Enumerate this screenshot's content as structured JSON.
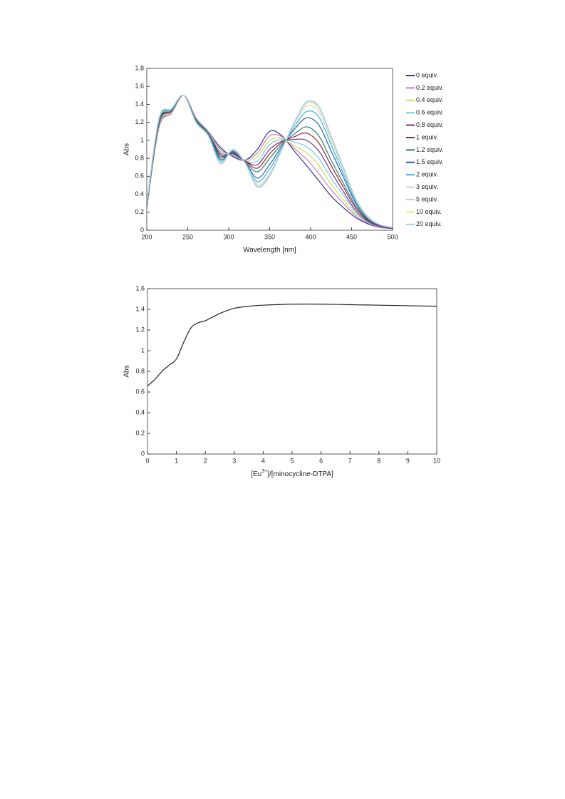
{
  "chart_data": [
    {
      "type": "line",
      "x_label": "Wavelength [nm]",
      "y_label": "Abs",
      "x": [
        200,
        215,
        230,
        245,
        260,
        275,
        290,
        305,
        320,
        335,
        350,
        365,
        380,
        395,
        410,
        425,
        440,
        455,
        470,
        485,
        500
      ],
      "xlim": [
        200,
        500
      ],
      "xticks": [
        200,
        250,
        300,
        350,
        400,
        450,
        500
      ],
      "ylim": [
        0,
        1.8
      ],
      "yticks": [
        0,
        0.2,
        0.4,
        0.6,
        0.8,
        1,
        1.2,
        1.4,
        1.6,
        1.8
      ],
      "legend": "right",
      "series": [
        {
          "name": "0 equiv.",
          "color": "#2e3a87",
          "values": [
            0.25,
            1.15,
            1.3,
            1.5,
            1.25,
            1.1,
            0.92,
            0.82,
            0.78,
            0.9,
            1.1,
            1.05,
            0.88,
            0.72,
            0.55,
            0.38,
            0.25,
            0.14,
            0.07,
            0.03,
            0.02
          ]
        },
        {
          "name": "0.2 equiv.",
          "color": "#c77dbf",
          "values": [
            0.26,
            1.16,
            1.3,
            1.5,
            1.25,
            1.1,
            0.9,
            0.83,
            0.78,
            0.86,
            1.05,
            1.04,
            0.91,
            0.79,
            0.63,
            0.45,
            0.3,
            0.16,
            0.08,
            0.03,
            0.02
          ]
        },
        {
          "name": "0.4 equiv.",
          "color": "#d3dd52",
          "values": [
            0.26,
            1.17,
            1.31,
            1.5,
            1.24,
            1.09,
            0.88,
            0.84,
            0.77,
            0.82,
            1,
            1.02,
            0.94,
            0.86,
            0.72,
            0.51,
            0.34,
            0.18,
            0.09,
            0.04,
            0.02
          ]
        },
        {
          "name": "0.6 equiv.",
          "color": "#6fd0e8",
          "values": [
            0.27,
            1.18,
            1.32,
            1.5,
            1.24,
            1.09,
            0.87,
            0.84,
            0.77,
            0.77,
            0.95,
            1.01,
            0.98,
            0.93,
            0.8,
            0.58,
            0.39,
            0.2,
            0.09,
            0.04,
            0.02
          ]
        },
        {
          "name": "0.8 equiv.",
          "color": "#7a2c8f",
          "values": [
            0.27,
            1.19,
            1.32,
            1.5,
            1.23,
            1.08,
            0.85,
            0.85,
            0.77,
            0.73,
            0.9,
            0.99,
            1.01,
            1,
            0.88,
            0.65,
            0.43,
            0.22,
            0.1,
            0.04,
            0.02
          ]
        },
        {
          "name": "1 equiv.",
          "color": "#8b2a2a",
          "values": [
            0.28,
            1.2,
            1.33,
            1.5,
            1.23,
            1.08,
            0.83,
            0.86,
            0.77,
            0.69,
            0.85,
            0.98,
            1.04,
            1.08,
            0.97,
            0.72,
            0.48,
            0.25,
            0.11,
            0.05,
            0.03
          ]
        },
        {
          "name": "1.2 equiv.",
          "color": "#2f7f6f",
          "values": [
            0.28,
            1.21,
            1.33,
            1.5,
            1.22,
            1.07,
            0.81,
            0.87,
            0.76,
            0.65,
            0.8,
            0.96,
            1.07,
            1.15,
            1.05,
            0.78,
            0.52,
            0.27,
            0.12,
            0.05,
            0.03
          ]
        },
        {
          "name": "1.5 equiv.",
          "color": "#2e5fa8",
          "values": [
            0.29,
            1.23,
            1.34,
            1.5,
            1.21,
            1.06,
            0.79,
            0.88,
            0.76,
            0.58,
            0.73,
            0.94,
            1.12,
            1.25,
            1.17,
            0.88,
            0.59,
            0.3,
            0.13,
            0.05,
            0.03
          ]
        },
        {
          "name": "2 equiv.",
          "color": "#3bb3d9",
          "values": [
            0.29,
            1.24,
            1.34,
            1.5,
            1.21,
            1.06,
            0.77,
            0.89,
            0.75,
            0.54,
            0.68,
            0.92,
            1.15,
            1.32,
            1.26,
            0.95,
            0.63,
            0.32,
            0.14,
            0.06,
            0.03
          ]
        },
        {
          "name": "3 equiv.",
          "color": "#c9d9c0",
          "values": [
            0.3,
            1.24,
            1.35,
            1.5,
            1.2,
            1.05,
            0.75,
            0.89,
            0.75,
            0.51,
            0.63,
            0.91,
            1.18,
            1.38,
            1.32,
            1.0,
            0.67,
            0.34,
            0.14,
            0.06,
            0.03
          ]
        },
        {
          "name": "5 equiv.",
          "color": "#c8ccd6",
          "values": [
            0.3,
            1.25,
            1.35,
            1.5,
            1.2,
            1.05,
            0.75,
            0.9,
            0.75,
            0.49,
            0.62,
            0.9,
            1.19,
            1.41,
            1.36,
            1.03,
            0.69,
            0.34,
            0.15,
            0.06,
            0.03
          ]
        },
        {
          "name": "10 equiv.",
          "color": "#ecec80",
          "values": [
            0.3,
            1.25,
            1.35,
            1.5,
            1.2,
            1.05,
            0.74,
            0.9,
            0.75,
            0.48,
            0.6,
            0.9,
            1.2,
            1.42,
            1.37,
            1.04,
            0.7,
            0.35,
            0.15,
            0.06,
            0.03
          ]
        },
        {
          "name": "20 equiv.",
          "color": "#9fd0ee",
          "values": [
            0.3,
            1.25,
            1.35,
            1.5,
            1.2,
            1.05,
            0.74,
            0.9,
            0.75,
            0.48,
            0.6,
            0.9,
            1.2,
            1.43,
            1.38,
            1.05,
            0.7,
            0.35,
            0.15,
            0.06,
            0.03
          ]
        }
      ]
    },
    {
      "type": "line",
      "x_label": [
        "[Eu",
        "3+",
        "]/[minocycline-DTPA]"
      ],
      "y_label": "Abs",
      "x": [
        0,
        0.25,
        0.5,
        0.75,
        1,
        1.25,
        1.5,
        1.75,
        2,
        2.5,
        3,
        3.5,
        4,
        5,
        6,
        7,
        8,
        9,
        10
      ],
      "values": [
        0.66,
        0.72,
        0.8,
        0.86,
        0.92,
        1.08,
        1.22,
        1.27,
        1.29,
        1.36,
        1.41,
        1.43,
        1.44,
        1.45,
        1.45,
        1.445,
        1.44,
        1.435,
        1.43
      ],
      "color": "#222222",
      "xlim": [
        0,
        10
      ],
      "xticks": [
        0,
        1,
        2,
        3,
        4,
        5,
        6,
        7,
        8,
        9,
        10
      ],
      "ylim": [
        0,
        1.6
      ],
      "yticks": [
        0,
        0.2,
        0.4,
        0.6,
        0.8,
        1,
        1.2,
        1.4,
        1.6
      ]
    }
  ]
}
